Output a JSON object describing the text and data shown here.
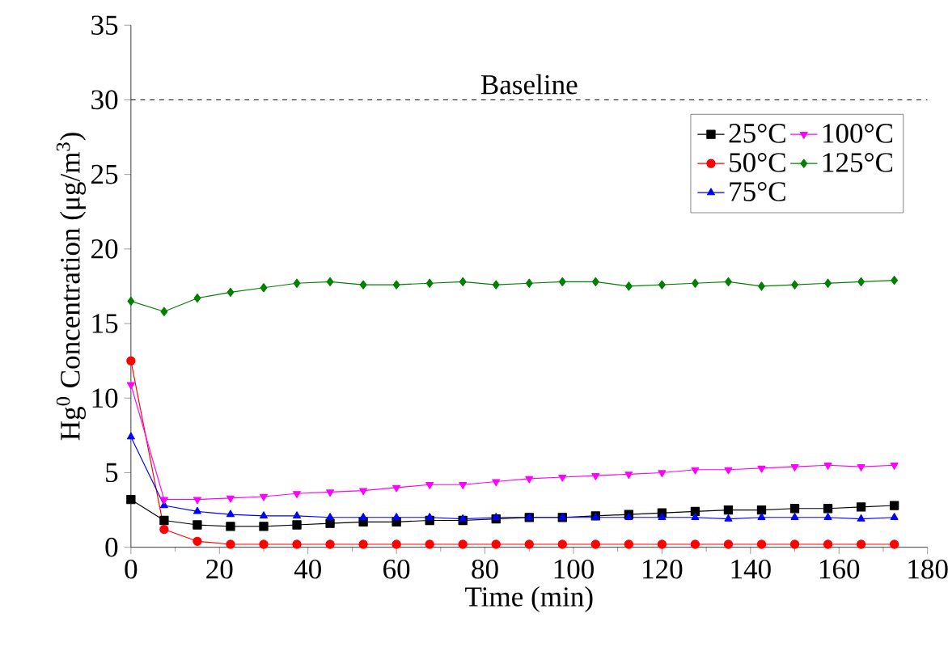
{
  "chart_data": {
    "type": "line",
    "xlabel": "Time (min)",
    "ylabel": "Hg$^{0}$ Concentration (μg/m$^{3}$)",
    "x": [
      0,
      7.5,
      15,
      22.5,
      30,
      37.5,
      45,
      52.5,
      60,
      67.5,
      75,
      82.5,
      90,
      97.5,
      105,
      112.5,
      120,
      127.5,
      135,
      142.5,
      150,
      157.5,
      165,
      172.5
    ],
    "series": [
      {
        "name": "25°C",
        "color": "#000000",
        "marker": "square",
        "values": [
          3.2,
          1.8,
          1.5,
          1.4,
          1.4,
          1.5,
          1.6,
          1.7,
          1.7,
          1.8,
          1.8,
          1.9,
          2.0,
          2.0,
          2.1,
          2.2,
          2.3,
          2.4,
          2.5,
          2.5,
          2.6,
          2.6,
          2.7,
          2.8
        ]
      },
      {
        "name": "50°C",
        "color": "#ff0000",
        "marker": "circle",
        "values": [
          12.5,
          1.2,
          0.4,
          0.2,
          0.2,
          0.2,
          0.2,
          0.2,
          0.2,
          0.2,
          0.2,
          0.2,
          0.2,
          0.2,
          0.2,
          0.2,
          0.2,
          0.2,
          0.2,
          0.2,
          0.2,
          0.2,
          0.2,
          0.2
        ]
      },
      {
        "name": "75°C",
        "color": "#0000ff",
        "marker": "triangle",
        "values": [
          7.4,
          2.8,
          2.4,
          2.2,
          2.1,
          2.1,
          2.0,
          2.0,
          2.0,
          2.0,
          1.9,
          2.0,
          2.0,
          2.0,
          2.0,
          2.0,
          2.0,
          2.0,
          1.9,
          2.0,
          2.0,
          2.0,
          1.9,
          2.0
        ]
      },
      {
        "name": "100°C",
        "color": "#ff00ff",
        "marker": "triangle-down",
        "values": [
          10.9,
          3.2,
          3.2,
          3.3,
          3.4,
          3.6,
          3.7,
          3.8,
          4.0,
          4.2,
          4.2,
          4.4,
          4.6,
          4.7,
          4.8,
          4.9,
          5.0,
          5.2,
          5.2,
          5.3,
          5.4,
          5.5,
          5.4,
          5.5
        ]
      },
      {
        "name": "125°C",
        "color": "#008000",
        "marker": "diamond",
        "values": [
          16.5,
          15.8,
          16.7,
          17.1,
          17.4,
          17.7,
          17.8,
          17.6,
          17.6,
          17.7,
          17.8,
          17.6,
          17.7,
          17.8,
          17.8,
          17.5,
          17.6,
          17.7,
          17.8,
          17.5,
          17.6,
          17.7,
          17.8,
          17.9
        ]
      }
    ],
    "xlim": [
      0,
      180
    ],
    "xticks": [
      0,
      20,
      40,
      60,
      80,
      100,
      120,
      140,
      160,
      180
    ],
    "ylim": [
      0,
      35
    ],
    "yticks": [
      0,
      5,
      10,
      15,
      20,
      25,
      30,
      35
    ],
    "ref_lines": [
      {
        "axis": "y",
        "value": 30,
        "label": "Baseline",
        "color": "#000000",
        "line_style": "dashed"
      }
    ],
    "legend": "top right",
    "grid": false,
    "line_style": "solid"
  }
}
